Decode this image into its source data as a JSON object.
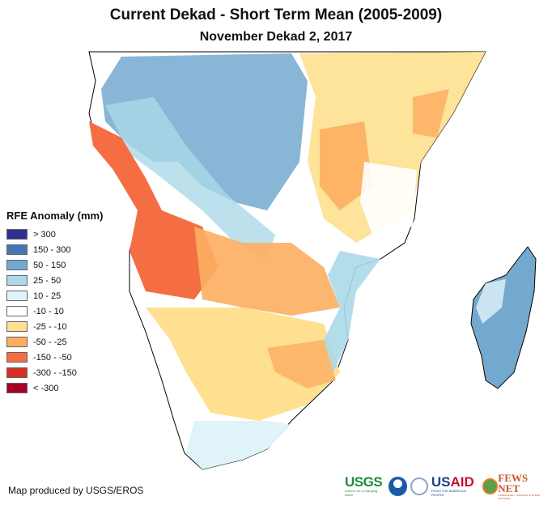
{
  "header": {
    "title": "Current Dekad - Short Term Mean (2005-2009)",
    "subtitle": "November Dekad 2, 2017"
  },
  "legend": {
    "title": "RFE Anomaly (mm)",
    "items": [
      {
        "label": "> 300",
        "color": "#2e3192"
      },
      {
        "label": "150 - 300",
        "color": "#4575b4"
      },
      {
        "label": "50 - 150",
        "color": "#74a9cf"
      },
      {
        "label": "25 - 50",
        "color": "#abd9e9"
      },
      {
        "label": "10 - 25",
        "color": "#e0f3f8"
      },
      {
        "label": "-10 - 10",
        "color": "#ffffff"
      },
      {
        "label": "-25 - -10",
        "color": "#fee090"
      },
      {
        "label": "-50 - -25",
        "color": "#fdae61"
      },
      {
        "label": "-150 - -50",
        "color": "#f46d43"
      },
      {
        "label": "-300 - -150",
        "color": "#d73027"
      },
      {
        "label": "< -300",
        "color": "#a50026"
      }
    ]
  },
  "footer": {
    "credit": "Map produced by USGS/EROS",
    "logos": {
      "usgs": "USGS",
      "usgs_tagline": "science for a changing world",
      "usaid_us": "US",
      "usaid_aid": "AID",
      "usaid_tagline": "FROM THE AMERICAN PEOPLE",
      "fews": "FEWS NET",
      "fews_tagline": "FAMINE EARLY WARNING SYSTEMS NETWORK"
    }
  },
  "map": {
    "region": "Southern and Eastern Africa",
    "regions": [
      {
        "name": "central-congo-basin",
        "class": "50 - 150"
      },
      {
        "name": "west-gabon-cameroon",
        "class": "25 - 50"
      },
      {
        "name": "angola-coast",
        "class": "-150 - -50"
      },
      {
        "name": "angola-interior",
        "class": "-50 - -25"
      },
      {
        "name": "zambia",
        "class": "-50 - -25"
      },
      {
        "name": "botswana-namibia",
        "class": "-25 - -10"
      },
      {
        "name": "tanzania-west",
        "class": "-50 - -25"
      },
      {
        "name": "tanzania-east",
        "class": "-10 - 10"
      },
      {
        "name": "kenya-somalia",
        "class": "-25 - -10"
      },
      {
        "name": "mozambique",
        "class": "25 - 50"
      },
      {
        "name": "madagascar",
        "class": "50 - 150"
      },
      {
        "name": "south-africa-south",
        "class": "10 - 25"
      }
    ]
  }
}
